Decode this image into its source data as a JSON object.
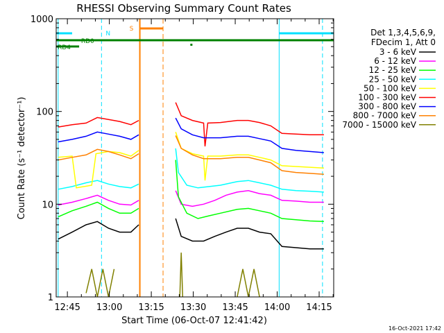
{
  "chart_data": {
    "type": "line",
    "title": "RHESSI Observing Summary Count Rates",
    "xlabel": "Start Time (06-Oct-07 12:41:42)",
    "ylabel": "Count Rate (s⁻¹ detector⁻¹)",
    "yscale": "log",
    "ylim": [
      1,
      1000
    ],
    "xlim_minutes": [
      -0.7,
      98.5
    ],
    "x_ticks": [
      "12:45",
      "13:00",
      "13:15",
      "13:30",
      "13:45",
      "14:00",
      "14:15"
    ],
    "y_ticks": [
      "1",
      "10",
      "100",
      "1000"
    ],
    "legend_header": [
      "Det 1,3,4,5,6,9,",
      "FDecim 1, Att 0"
    ],
    "legend_position": "right",
    "series": [
      {
        "name": "3 - 6 keV",
        "color": "#000000",
        "values": [
          {
            "t": 0,
            "v": 4.2
          },
          {
            "t": 5,
            "v": 5.0
          },
          {
            "t": 10,
            "v": 6.0
          },
          {
            "t": 14,
            "v": 6.5
          },
          {
            "t": 18,
            "v": 5.5
          },
          {
            "t": 22,
            "v": 5.0
          },
          {
            "t": 26,
            "v": 5.0
          },
          {
            "t": 28.8,
            "v": 6.0
          },
          {
            "t": 42,
            "v": 7.0
          },
          {
            "t": 44,
            "v": 4.5
          },
          {
            "t": 48,
            "v": 4.0
          },
          {
            "t": 52,
            "v": 4.0
          },
          {
            "t": 56,
            "v": 4.5
          },
          {
            "t": 60,
            "v": 5.0
          },
          {
            "t": 64,
            "v": 5.5
          },
          {
            "t": 68,
            "v": 5.5
          },
          {
            "t": 72,
            "v": 5.0
          },
          {
            "t": 76,
            "v": 4.8
          },
          {
            "t": 80,
            "v": 3.5
          },
          {
            "t": 85,
            "v": 3.4
          },
          {
            "t": 90,
            "v": 3.3
          },
          {
            "t": 95,
            "v": 3.3
          }
        ]
      },
      {
        "name": "6 - 12 keV",
        "color": "#ff00ff",
        "values": [
          {
            "t": 0,
            "v": 9.8
          },
          {
            "t": 5,
            "v": 10.5
          },
          {
            "t": 10,
            "v": 11.5
          },
          {
            "t": 14,
            "v": 12.5
          },
          {
            "t": 18,
            "v": 11.0
          },
          {
            "t": 22,
            "v": 10.0
          },
          {
            "t": 26,
            "v": 9.8
          },
          {
            "t": 28.8,
            "v": 11.0
          },
          {
            "t": 42,
            "v": 14.0
          },
          {
            "t": 44,
            "v": 10.0
          },
          {
            "t": 48,
            "v": 9.5
          },
          {
            "t": 52,
            "v": 10.0
          },
          {
            "t": 56,
            "v": 11.0
          },
          {
            "t": 60,
            "v": 12.5
          },
          {
            "t": 64,
            "v": 13.5
          },
          {
            "t": 68,
            "v": 14.0
          },
          {
            "t": 72,
            "v": 13.0
          },
          {
            "t": 76,
            "v": 12.5
          },
          {
            "t": 80,
            "v": 11.0
          },
          {
            "t": 85,
            "v": 10.8
          },
          {
            "t": 90,
            "v": 10.5
          },
          {
            "t": 95,
            "v": 10.5
          }
        ]
      },
      {
        "name": "12 - 25 keV",
        "color": "#00ff00",
        "values": [
          {
            "t": 0,
            "v": 7.3
          },
          {
            "t": 5,
            "v": 8.5
          },
          {
            "t": 10,
            "v": 9.5
          },
          {
            "t": 14,
            "v": 10.5
          },
          {
            "t": 18,
            "v": 9.0
          },
          {
            "t": 22,
            "v": 8.0
          },
          {
            "t": 26,
            "v": 8.0
          },
          {
            "t": 28.8,
            "v": 9.0
          },
          {
            "t": 42,
            "v": 30.0
          },
          {
            "t": 43,
            "v": 12.0
          },
          {
            "t": 46,
            "v": 8.0
          },
          {
            "t": 50,
            "v": 7.0
          },
          {
            "t": 54,
            "v": 7.5
          },
          {
            "t": 58,
            "v": 8.0
          },
          {
            "t": 64,
            "v": 8.8
          },
          {
            "t": 68,
            "v": 9.0
          },
          {
            "t": 72,
            "v": 8.5
          },
          {
            "t": 76,
            "v": 8.0
          },
          {
            "t": 80,
            "v": 7.0
          },
          {
            "t": 85,
            "v": 6.8
          },
          {
            "t": 90,
            "v": 6.6
          },
          {
            "t": 95,
            "v": 6.5
          }
        ]
      },
      {
        "name": "25 - 50 keV",
        "color": "#00ffff",
        "values": [
          {
            "t": 0,
            "v": 14.5
          },
          {
            "t": 5,
            "v": 15.5
          },
          {
            "t": 10,
            "v": 17.0
          },
          {
            "t": 14,
            "v": 18.0
          },
          {
            "t": 18,
            "v": 16.5
          },
          {
            "t": 22,
            "v": 15.5
          },
          {
            "t": 26,
            "v": 15.0
          },
          {
            "t": 28.8,
            "v": 16.5
          },
          {
            "t": 42,
            "v": 40.0
          },
          {
            "t": 43,
            "v": 22.0
          },
          {
            "t": 46,
            "v": 16.0
          },
          {
            "t": 50,
            "v": 15.0
          },
          {
            "t": 54,
            "v": 15.5
          },
          {
            "t": 58,
            "v": 16.0
          },
          {
            "t": 64,
            "v": 17.5
          },
          {
            "t": 68,
            "v": 18.0
          },
          {
            "t": 72,
            "v": 17.0
          },
          {
            "t": 76,
            "v": 16.0
          },
          {
            "t": 80,
            "v": 14.5
          },
          {
            "t": 85,
            "v": 14.0
          },
          {
            "t": 90,
            "v": 13.8
          },
          {
            "t": 95,
            "v": 13.5
          }
        ]
      },
      {
        "name": "50 - 100 keV",
        "color": "#ffff00",
        "values": [
          {
            "t": 0,
            "v": 32.0
          },
          {
            "t": 5,
            "v": 33.0
          },
          {
            "t": 6.5,
            "v": 15.0
          },
          {
            "t": 12,
            "v": 16.0
          },
          {
            "t": 13.5,
            "v": 35.0
          },
          {
            "t": 18,
            "v": 37.0
          },
          {
            "t": 22,
            "v": 36.0
          },
          {
            "t": 26,
            "v": 33.0
          },
          {
            "t": 28.8,
            "v": 38.0
          },
          {
            "t": 42,
            "v": 60.0
          },
          {
            "t": 44,
            "v": 40.0
          },
          {
            "t": 48,
            "v": 35.0
          },
          {
            "t": 52,
            "v": 33.0
          },
          {
            "t": 52.5,
            "v": 18.0
          },
          {
            "t": 53.5,
            "v": 33.0
          },
          {
            "t": 58,
            "v": 33.0
          },
          {
            "t": 64,
            "v": 34.0
          },
          {
            "t": 68,
            "v": 34.0
          },
          {
            "t": 72,
            "v": 32.0
          },
          {
            "t": 76,
            "v": 30.0
          },
          {
            "t": 80,
            "v": 26.0
          },
          {
            "t": 85,
            "v": 25.5
          },
          {
            "t": 90,
            "v": 25.0
          },
          {
            "t": 95,
            "v": 24.5
          }
        ]
      },
      {
        "name": "100 - 300 keV",
        "color": "#ff0000",
        "values": [
          {
            "t": 0,
            "v": 68.0
          },
          {
            "t": 5,
            "v": 72.0
          },
          {
            "t": 10,
            "v": 75.0
          },
          {
            "t": 14,
            "v": 86.0
          },
          {
            "t": 18,
            "v": 82.0
          },
          {
            "t": 22,
            "v": 78.0
          },
          {
            "t": 26,
            "v": 72.0
          },
          {
            "t": 28.8,
            "v": 80.0
          },
          {
            "t": 42,
            "v": 125.0
          },
          {
            "t": 44,
            "v": 90.0
          },
          {
            "t": 48,
            "v": 80.0
          },
          {
            "t": 52,
            "v": 75.0
          },
          {
            "t": 52.5,
            "v": 42.0
          },
          {
            "t": 53.5,
            "v": 75.0
          },
          {
            "t": 58,
            "v": 76.0
          },
          {
            "t": 64,
            "v": 80.0
          },
          {
            "t": 68,
            "v": 80.0
          },
          {
            "t": 72,
            "v": 76.0
          },
          {
            "t": 76,
            "v": 70.0
          },
          {
            "t": 80,
            "v": 58.0
          },
          {
            "t": 85,
            "v": 57.0
          },
          {
            "t": 90,
            "v": 56.0
          },
          {
            "t": 95,
            "v": 56.0
          }
        ]
      },
      {
        "name": "300 - 800 keV",
        "color": "#0000ff",
        "values": [
          {
            "t": 0,
            "v": 47.0
          },
          {
            "t": 5,
            "v": 50.0
          },
          {
            "t": 10,
            "v": 54.0
          },
          {
            "t": 14,
            "v": 60.0
          },
          {
            "t": 18,
            "v": 57.0
          },
          {
            "t": 22,
            "v": 54.0
          },
          {
            "t": 26,
            "v": 50.0
          },
          {
            "t": 28.8,
            "v": 56.0
          },
          {
            "t": 42,
            "v": 85.0
          },
          {
            "t": 44,
            "v": 65.0
          },
          {
            "t": 48,
            "v": 56.0
          },
          {
            "t": 52,
            "v": 52.0
          },
          {
            "t": 58,
            "v": 52.0
          },
          {
            "t": 64,
            "v": 54.0
          },
          {
            "t": 68,
            "v": 54.0
          },
          {
            "t": 72,
            "v": 51.0
          },
          {
            "t": 76,
            "v": 48.0
          },
          {
            "t": 80,
            "v": 40.0
          },
          {
            "t": 85,
            "v": 38.0
          },
          {
            "t": 90,
            "v": 37.0
          },
          {
            "t": 95,
            "v": 36.0
          }
        ]
      },
      {
        "name": "800 - 7000 keV",
        "color": "#ff8000",
        "values": [
          {
            "t": 0,
            "v": 30.0
          },
          {
            "t": 5,
            "v": 32.0
          },
          {
            "t": 10,
            "v": 34.0
          },
          {
            "t": 14,
            "v": 39.0
          },
          {
            "t": 18,
            "v": 37.0
          },
          {
            "t": 22,
            "v": 34.0
          },
          {
            "t": 26,
            "v": 31.0
          },
          {
            "t": 28.8,
            "v": 35.0
          },
          {
            "t": 42,
            "v": 55.0
          },
          {
            "t": 44,
            "v": 40.0
          },
          {
            "t": 48,
            "v": 34.0
          },
          {
            "t": 52,
            "v": 31.0
          },
          {
            "t": 58,
            "v": 31.0
          },
          {
            "t": 64,
            "v": 32.0
          },
          {
            "t": 68,
            "v": 32.0
          },
          {
            "t": 72,
            "v": 30.0
          },
          {
            "t": 76,
            "v": 28.0
          },
          {
            "t": 80,
            "v": 23.0
          },
          {
            "t": 85,
            "v": 22.0
          },
          {
            "t": 90,
            "v": 21.5
          },
          {
            "t": 95,
            "v": 21.0
          }
        ]
      },
      {
        "name": "7000 - 15000 keV",
        "color": "#808000",
        "values": [
          {
            "t": 10,
            "v": 1.1
          },
          {
            "t": 12,
            "v": 2.0
          },
          {
            "t": 14,
            "v": 1.0
          },
          {
            "t": 16,
            "v": 2.0
          },
          {
            "t": 18,
            "v": 1.0
          },
          {
            "t": 20,
            "v": 2.0
          },
          {
            "t": 43.5,
            "v": 1.0
          },
          {
            "t": 44,
            "v": 3.0
          },
          {
            "t": 44.5,
            "v": 1.0
          },
          {
            "t": 64,
            "v": 1.0
          },
          {
            "t": 66,
            "v": 2.0
          },
          {
            "t": 68,
            "v": 1.0
          },
          {
            "t": 70,
            "v": 2.0
          },
          {
            "t": 72,
            "v": 1.0
          }
        ]
      }
    ],
    "annotations": {
      "night_label": "N",
      "saa_label": "S",
      "rd0_label": "RD0",
      "rd4_label": "RD4",
      "night_color": "#00e0ff",
      "saa_color": "#ff8000",
      "flag_color": "#008000"
    },
    "footer": "16-Oct-2021 17:42"
  }
}
